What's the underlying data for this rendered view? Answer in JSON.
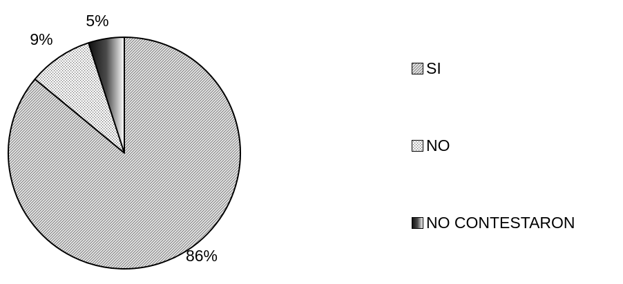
{
  "chart_data": {
    "type": "pie",
    "categories": [
      "SI",
      "NO",
      "NO CONTESTARON"
    ],
    "values": [
      86,
      9,
      5
    ],
    "value_labels": [
      "86%",
      "9%",
      "5%"
    ],
    "legend_position": "right",
    "slice_styles": [
      {
        "name": "SI",
        "base": "#e6e6e6",
        "line": "#6e6e6e",
        "pattern": "diagonal"
      },
      {
        "name": "NO",
        "base": "#f4f4f4",
        "line": "#6a6a6a",
        "pattern": "dotted"
      },
      {
        "name": "NO CONTESTARON",
        "base": "#1a1a1a",
        "line": "#ffffff",
        "pattern": "gradient-dark-light"
      }
    ]
  }
}
